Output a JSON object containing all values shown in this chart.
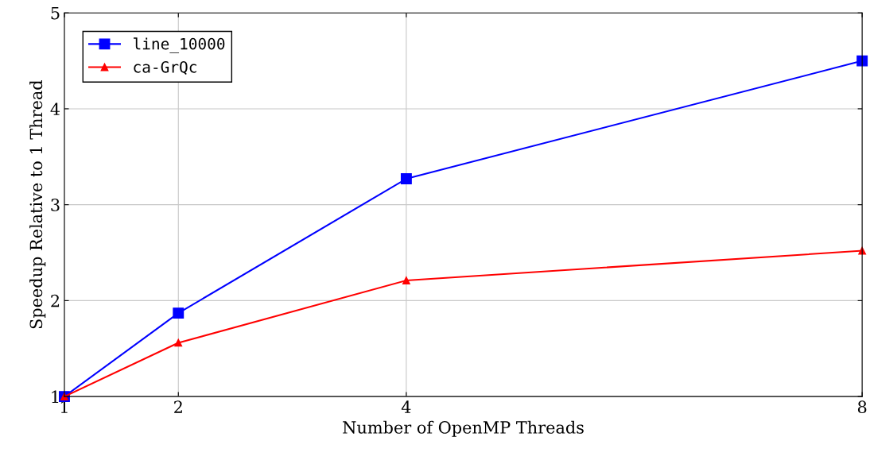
{
  "chart_data": {
    "type": "line",
    "xlabel": "Number of OpenMP Threads",
    "ylabel": "Speedup Relative to 1 Thread",
    "x": [
      1,
      2,
      4,
      8
    ],
    "series": [
      {
        "name": "line_10000",
        "color": "#0000ff",
        "marker": "square",
        "values": [
          1,
          1.87,
          3.27,
          4.5
        ]
      },
      {
        "name": "ca-GrQc",
        "color": "#ff0000",
        "marker": "triangle",
        "values": [
          1,
          1.56,
          2.21,
          2.52
        ]
      }
    ],
    "xlim": [
      1,
      8
    ],
    "xticks": [
      1,
      2,
      4,
      8
    ],
    "ylim": [
      1,
      5
    ],
    "yticks": [
      1,
      2,
      3,
      4,
      5
    ],
    "grid": true,
    "legend": "top left",
    "line_style": "solid"
  }
}
